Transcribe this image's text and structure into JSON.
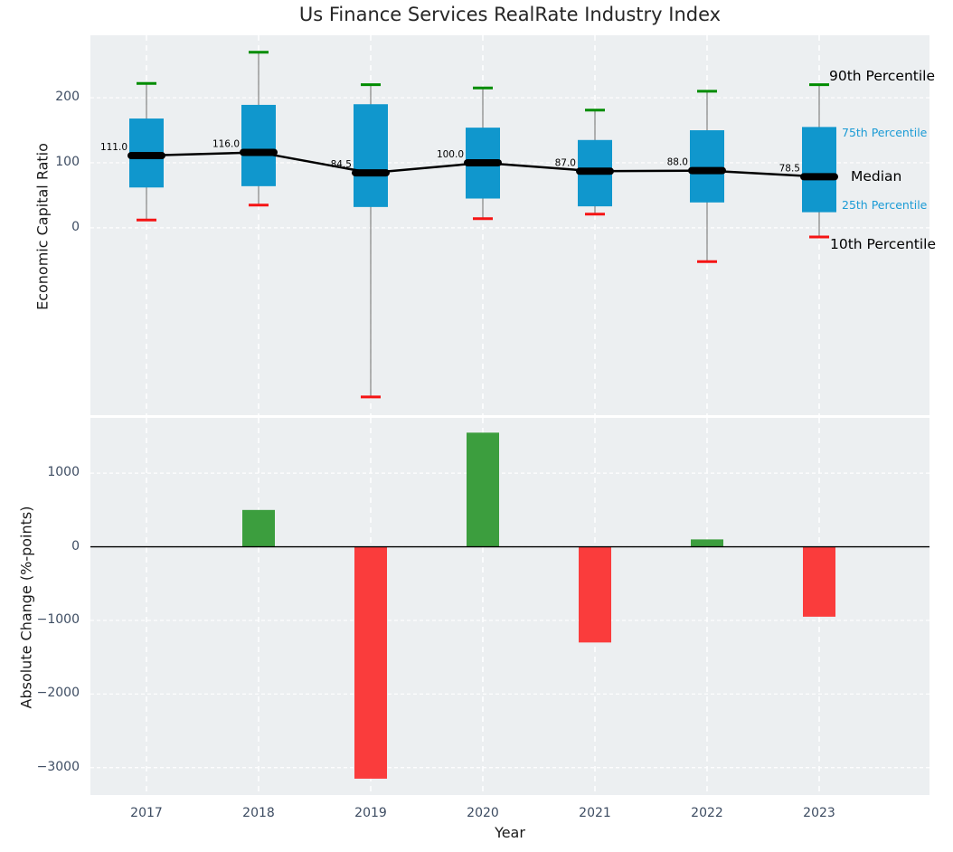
{
  "title": "Us Finance Services RealRate Industry Index",
  "axes": {
    "x_label": "Year",
    "top_y_label": "Economic Capital Ratio",
    "bottom_y_label": "Absolute Change (%-points)",
    "top_y_ticks": [
      200,
      100,
      0
    ],
    "bottom_y_ticks": [
      1000,
      0,
      -1000,
      -2000,
      -3000
    ]
  },
  "legend": {
    "p90": "90th Percentile",
    "p75": "75th Percentile",
    "median": "Median",
    "p25": "25th Percentile",
    "p10": "10th Percentile"
  },
  "colors": {
    "box_fill": "#1097cd",
    "whisker": "#8a8a8a",
    "cap_high": "#008c00",
    "cap_low": "#f51414",
    "median_line": "#000000",
    "bar_positive": "#3c9e3e",
    "bar_negative": "#fa3c3c",
    "panel_bg": "#eceff1",
    "grid": "#ffffff",
    "tick_text": "#3d4c62",
    "blue_label": "#1b9bd5"
  },
  "chart_data": [
    {
      "type": "boxplot-line",
      "title": "Us Finance Services RealRate Industry Index",
      "ylabel": "Economic Capital Ratio",
      "categories": [
        "2017",
        "2018",
        "2019",
        "2020",
        "2021",
        "2022",
        "2023"
      ],
      "ylim": [
        -288,
        296
      ],
      "grid": true,
      "series": [
        {
          "name": "90th Percentile",
          "values": [
            222,
            270,
            220,
            215,
            181,
            210,
            220
          ]
        },
        {
          "name": "75th Percentile",
          "values": [
            168,
            189,
            190,
            154,
            135,
            150,
            155
          ]
        },
        {
          "name": "Median",
          "values": [
            111.0,
            116.0,
            84.5,
            100.0,
            87.0,
            88.0,
            78.5
          ]
        },
        {
          "name": "25th Percentile",
          "values": [
            62,
            64,
            32,
            45,
            33,
            39,
            24
          ]
        },
        {
          "name": "10th Percentile",
          "values": [
            12,
            35,
            -260,
            14,
            21,
            -52,
            -14
          ]
        }
      ],
      "median_labels": [
        "111.0",
        "116.0",
        "84.5",
        "100.0",
        "87.0",
        "88.0",
        "78.5"
      ]
    },
    {
      "type": "bar",
      "ylabel": "Absolute Change (%-points)",
      "categories": [
        "2017",
        "2018",
        "2019",
        "2020",
        "2021",
        "2022",
        "2023"
      ],
      "values": [
        null,
        500,
        -3150,
        1550,
        -1300,
        100,
        -950
      ],
      "ylim": [
        -3372,
        1751
      ],
      "grid": true,
      "zero_line": true
    }
  ]
}
